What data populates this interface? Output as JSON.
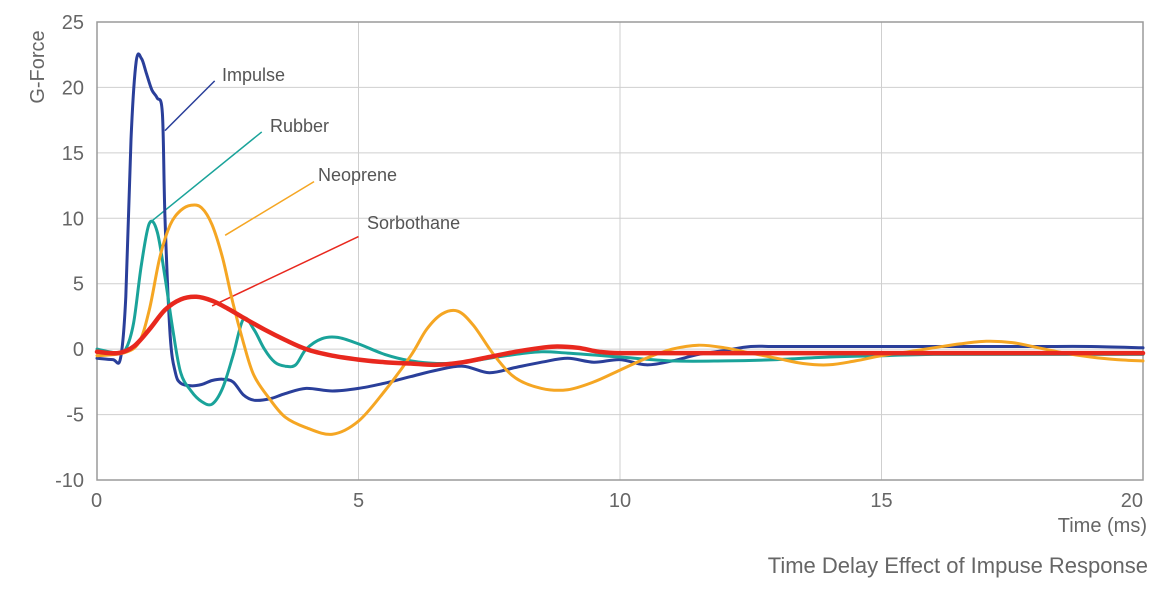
{
  "chart_data": {
    "type": "line",
    "title": "",
    "caption": "Time Delay Effect of Impuse Response",
    "xlabel": "Time (ms)",
    "ylabel": "G-Force",
    "xlim": [
      0,
      20
    ],
    "ylim": [
      -10,
      25
    ],
    "xticks": [
      0,
      5,
      10,
      15,
      20
    ],
    "yticks": [
      25,
      20,
      15,
      10,
      5,
      0,
      -5,
      -10
    ],
    "ytick_labels": [
      "25",
      "20",
      "15",
      "10",
      "5",
      "0",
      "-5",
      "-10"
    ],
    "grid": true,
    "legend": "inline-labels",
    "series": [
      {
        "name": "Impulse",
        "color": "#2a3f9a",
        "x": [
          0,
          0.3,
          0.45,
          0.55,
          0.65,
          0.75,
          0.85,
          0.95,
          1.05,
          1.15,
          1.25,
          1.3,
          1.4,
          1.5,
          1.6,
          1.8,
          2.0,
          2.2,
          2.4,
          2.6,
          2.8,
          3.0,
          3.3,
          3.6,
          4.0,
          4.5,
          5.0,
          5.5,
          6.0,
          6.5,
          7.0,
          7.5,
          8.0,
          8.5,
          9.0,
          9.5,
          10.0,
          10.5,
          11.0,
          11.5,
          12.0,
          12.5,
          13.0,
          14.0,
          15.0,
          16.0,
          17.0,
          18.0,
          19.0,
          20.0
        ],
        "y": [
          -0.7,
          -0.8,
          -0.7,
          4,
          16,
          22,
          22.2,
          21,
          19.8,
          19.2,
          18,
          10,
          1,
          -1.8,
          -2.6,
          -2.8,
          -2.7,
          -2.4,
          -2.3,
          -2.5,
          -3.5,
          -3.9,
          -3.8,
          -3.4,
          -3.0,
          -3.2,
          -3.0,
          -2.6,
          -2.1,
          -1.6,
          -1.3,
          -1.8,
          -1.4,
          -1.0,
          -0.7,
          -1.0,
          -0.8,
          -1.2,
          -0.9,
          -0.4,
          -0.1,
          0.2,
          0.2,
          0.2,
          0.2,
          0.2,
          0.2,
          0.2,
          0.2,
          0.1
        ]
      },
      {
        "name": "Rubber",
        "color": "#1aa39a",
        "x": [
          0,
          0.4,
          0.55,
          0.7,
          0.85,
          1.0,
          1.15,
          1.3,
          1.45,
          1.6,
          1.8,
          2.0,
          2.2,
          2.4,
          2.6,
          2.8,
          3.0,
          3.2,
          3.4,
          3.6,
          3.8,
          4.0,
          4.3,
          4.6,
          5.0,
          5.5,
          6.0,
          6.5,
          7.0,
          7.5,
          8.0,
          8.5,
          9.0,
          10.0,
          11.0,
          12.0,
          13.0,
          14.0,
          15.0,
          16.0,
          17.0,
          18.0,
          19.0,
          20.0
        ],
        "y": [
          0,
          -0.3,
          0,
          2,
          6.5,
          9.6,
          9.0,
          5.5,
          1.5,
          -1.8,
          -3.2,
          -4.0,
          -4.2,
          -3.0,
          -0.5,
          2.3,
          1.5,
          0,
          -1.0,
          -1.3,
          -1.2,
          0,
          0.8,
          0.9,
          0.4,
          -0.4,
          -0.9,
          -1.1,
          -1.0,
          -0.7,
          -0.4,
          -0.2,
          -0.3,
          -0.6,
          -0.9,
          -0.9,
          -0.8,
          -0.6,
          -0.5,
          -0.4,
          -0.4,
          -0.4,
          -0.4,
          -0.4
        ]
      },
      {
        "name": "Neoprene",
        "color": "#f5a623",
        "x": [
          0,
          0.5,
          0.8,
          1.0,
          1.2,
          1.4,
          1.6,
          1.8,
          2.0,
          2.2,
          2.4,
          2.6,
          2.8,
          3.0,
          3.3,
          3.6,
          4.0,
          4.5,
          5.0,
          5.5,
          6.0,
          6.3,
          6.6,
          6.9,
          7.2,
          7.6,
          8.0,
          8.5,
          9.0,
          9.5,
          10.0,
          10.5,
          11.0,
          11.5,
          12.0,
          12.5,
          13.0,
          13.5,
          14.0,
          14.5,
          15.0,
          15.5,
          16.0,
          16.5,
          17.0,
          17.5,
          18.0,
          18.5,
          19.0,
          19.5,
          20.0
        ],
        "y": [
          -0.5,
          -0.3,
          0.5,
          3,
          7,
          9.5,
          10.6,
          11.0,
          10.8,
          9.5,
          7.0,
          3.5,
          0.5,
          -2.0,
          -3.8,
          -5.2,
          -6.0,
          -6.5,
          -5.5,
          -3.2,
          -0.5,
          1.5,
          2.7,
          2.9,
          1.8,
          -0.5,
          -2.2,
          -3.0,
          -3.1,
          -2.5,
          -1.6,
          -0.7,
          0,
          0.3,
          0.1,
          -0.3,
          -0.7,
          -1.1,
          -1.2,
          -0.9,
          -0.5,
          -0.2,
          0.1,
          0.4,
          0.6,
          0.5,
          0.1,
          -0.3,
          -0.6,
          -0.8,
          -0.9
        ]
      },
      {
        "name": "Sorbothane",
        "color": "#e8281e",
        "x": [
          0,
          0.4,
          0.7,
          1.0,
          1.3,
          1.6,
          1.9,
          2.2,
          2.5,
          2.8,
          3.2,
          3.6,
          4.0,
          4.5,
          5.0,
          5.5,
          6.0,
          6.5,
          7.0,
          7.5,
          8.0,
          8.5,
          8.8,
          9.2,
          9.6,
          10.0,
          11.0,
          12.0,
          13.0,
          14.0,
          15.0,
          16.0,
          17.0,
          18.0,
          19.0,
          20.0
        ],
        "y": [
          -0.2,
          -0.3,
          0.2,
          1.5,
          3.0,
          3.8,
          4.0,
          3.7,
          3.1,
          2.4,
          1.5,
          0.7,
          0,
          -0.5,
          -0.8,
          -1.0,
          -1.1,
          -1.2,
          -1.0,
          -0.6,
          -0.2,
          0.1,
          0.2,
          0.1,
          -0.2,
          -0.3,
          -0.3,
          -0.3,
          -0.3,
          -0.3,
          -0.3,
          -0.3,
          -0.3,
          -0.3,
          -0.3,
          -0.3
        ]
      }
    ]
  }
}
